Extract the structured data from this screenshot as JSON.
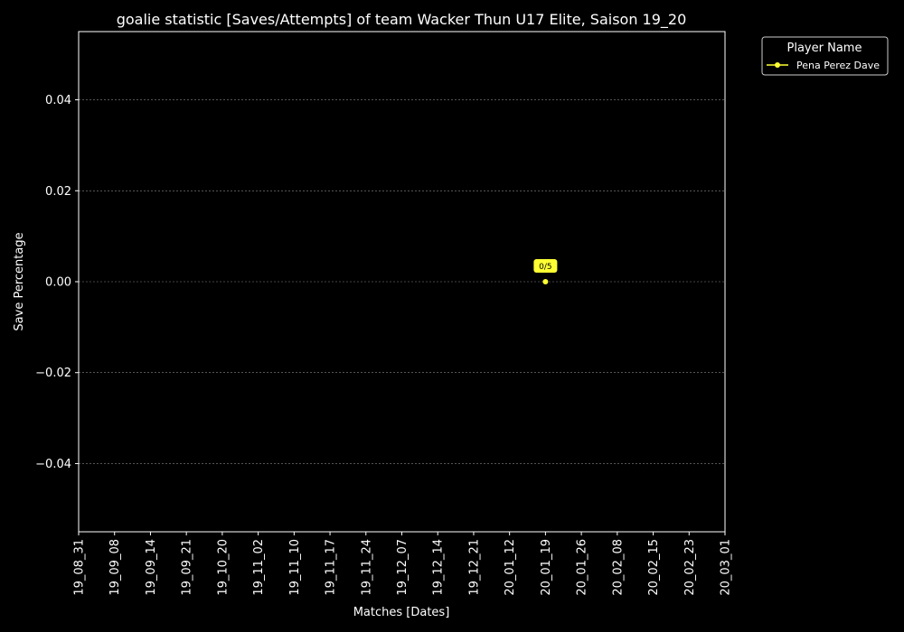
{
  "chart_data": {
    "type": "line",
    "title": "goalie statistic [Saves/Attempts] of team Wacker Thun U17 Elite, Saison 19_20",
    "xlabel": "Matches [Dates]",
    "ylabel": "Save Percentage",
    "categories": [
      "19_08_31",
      "19_09_08",
      "19_09_14",
      "19_09_21",
      "19_10_20",
      "19_11_02",
      "19_11_10",
      "19_11_17",
      "19_11_24",
      "19_12_07",
      "19_12_14",
      "19_12_21",
      "20_01_12",
      "20_01_19",
      "20_01_26",
      "20_02_08",
      "20_02_15",
      "20_02_23",
      "20_03_01"
    ],
    "ylim": [
      -0.055,
      0.055
    ],
    "yticks": [
      -0.04,
      -0.02,
      0.0,
      0.02,
      0.04
    ],
    "ytick_labels": [
      "−0.04",
      "−0.02",
      "0.00",
      "0.02",
      "0.04"
    ],
    "grid": true,
    "legend": {
      "title": "Player Name",
      "placement": "outside-top-right"
    },
    "series": [
      {
        "name": "Pena Perez Dave",
        "color": "#ffff33",
        "points": [
          {
            "x": "20_01_19",
            "y": 0.0,
            "label": "0/5"
          }
        ]
      }
    ]
  }
}
